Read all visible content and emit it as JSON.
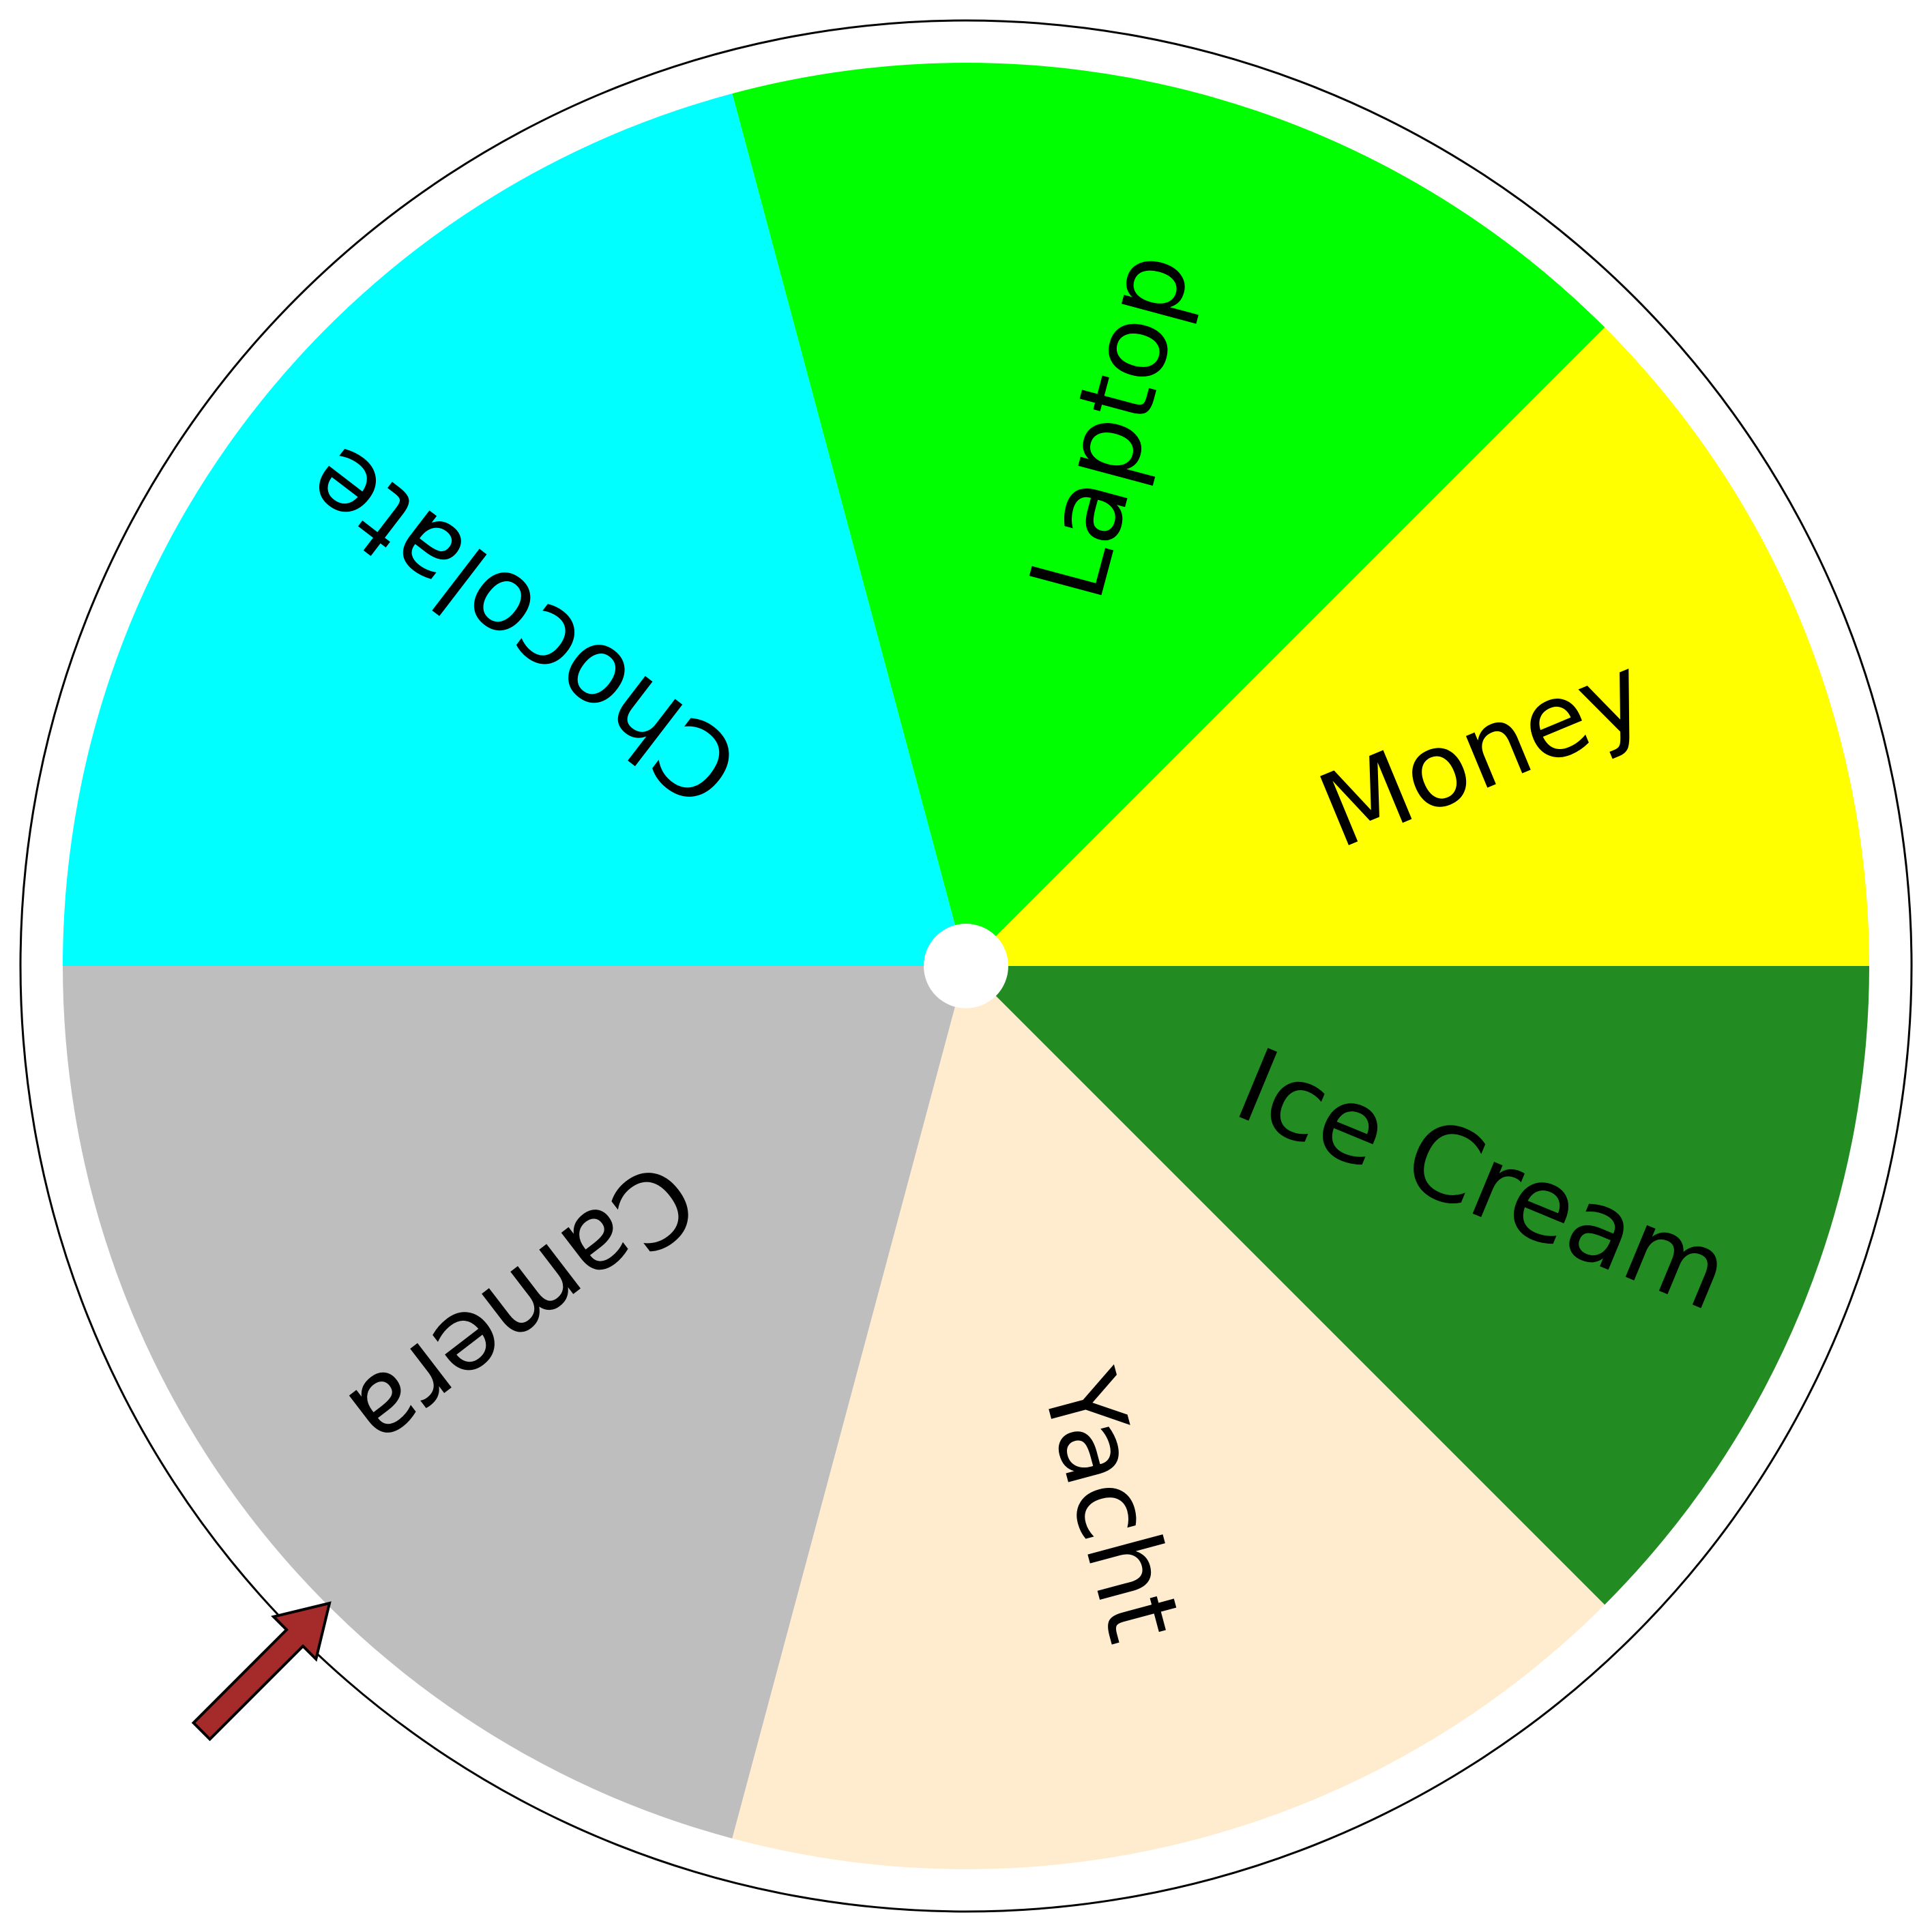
{
  "wheel": {
    "outer_ring_color": "#ffffff",
    "outer_ring_stroke": "#000000",
    "hub_color": "#ffffff",
    "segments": [
      {
        "label": "Money",
        "color": "#ffff00",
        "start_deg": 0,
        "end_deg": 45,
        "label_angle_deg": 22.5,
        "text_rotation_deg": -22.5
      },
      {
        "label": "Laptop",
        "color": "#00ff00",
        "start_deg": 45,
        "end_deg": 105,
        "label_angle_deg": 75,
        "text_rotation_deg": -75
      },
      {
        "label": "Chocolate",
        "color": "#00ffff",
        "start_deg": 105,
        "end_deg": 180,
        "label_angle_deg": 142.5,
        "text_rotation_deg": 217.5
      },
      {
        "label": "Camera",
        "color": "#bebebe",
        "start_deg": 180,
        "end_deg": 255,
        "label_angle_deg": 217.5,
        "text_rotation_deg": 142.5
      },
      {
        "label": "Yacht",
        "color": "#ffebcd",
        "start_deg": 255,
        "end_deg": 315,
        "label_angle_deg": 285,
        "text_rotation_deg": 75
      },
      {
        "label": "Ice Cream",
        "color": "#228b22",
        "start_deg": 315,
        "end_deg": 360,
        "label_angle_deg": 337.5,
        "text_rotation_deg": 22.5
      }
    ]
  },
  "pointer": {
    "icon": "arrow-pointer-icon",
    "color": "#a52a2a",
    "stroke": "#000000",
    "points_at": "Camera"
  }
}
